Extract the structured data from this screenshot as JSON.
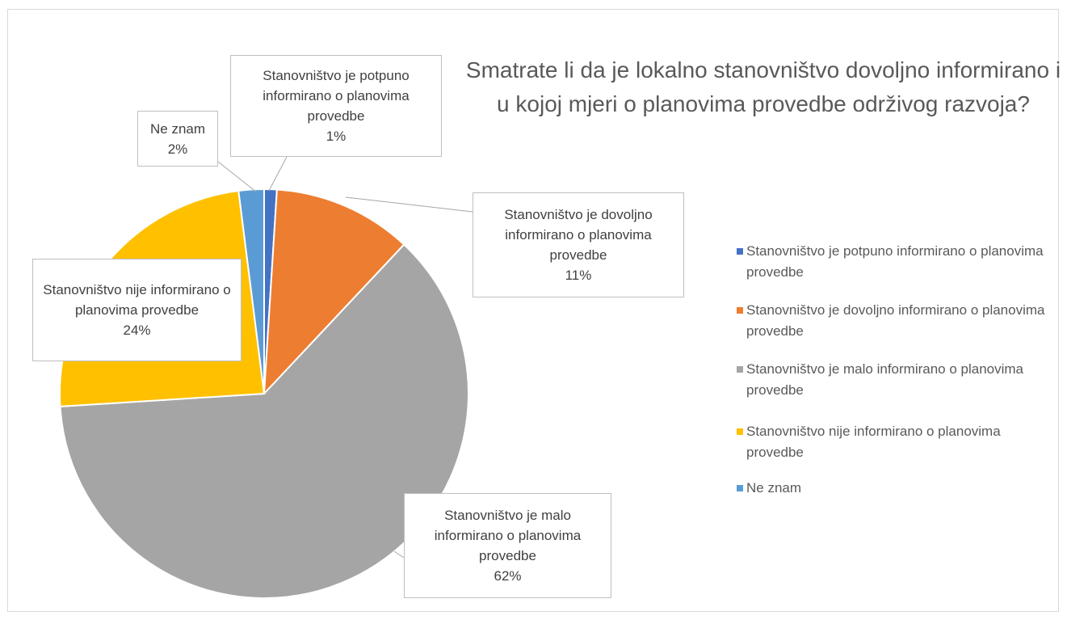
{
  "chart_data": {
    "type": "pie",
    "title": "Smatrate li da je lokalno stanovništvo dovoljno informirano i u kojoj mjeri o planovima provedbe održivog razvoja?",
    "categories": [
      "Stanovništvo je potpuno informirano o planovima provedbe",
      "Stanovništvo je dovoljno informirano o planovima provedbe",
      "Stanovništvo je malo informirano o planovima provedbe",
      "Stanovništvo nije informirano o planovima provedbe",
      "Ne znam"
    ],
    "values": [
      1,
      11,
      62,
      24,
      2
    ],
    "value_labels": [
      "1%",
      "11%",
      "62%",
      "24%",
      "2%"
    ],
    "colors": [
      "#4472c4",
      "#ed7d31",
      "#a5a5a5",
      "#ffc000",
      "#5b9bd5"
    ],
    "legend": "right"
  }
}
